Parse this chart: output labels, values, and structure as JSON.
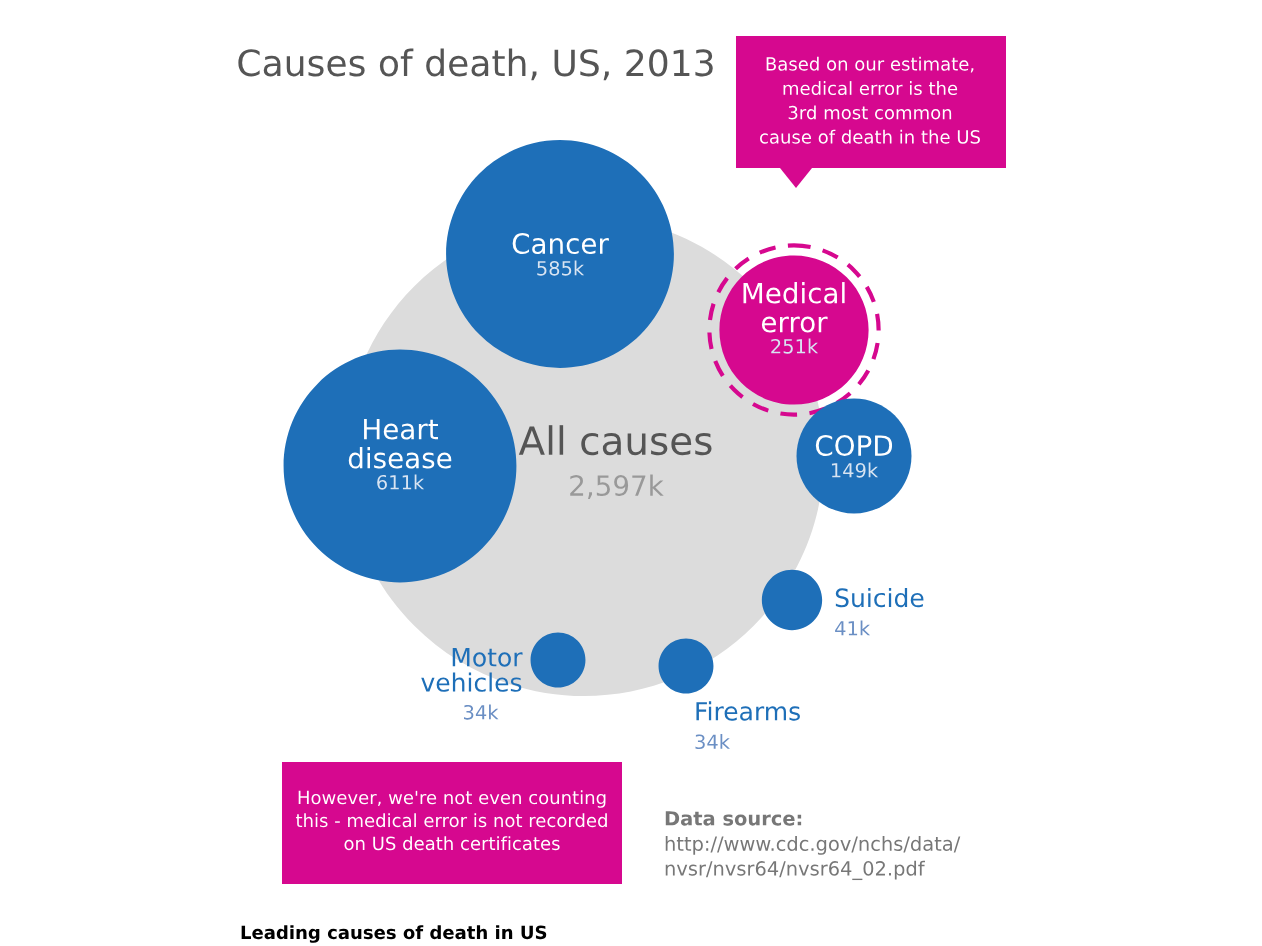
{
  "chart_data": {
    "type": "other",
    "title": "Causes of death, US, 2013",
    "categories": [
      "All causes",
      "Cancer",
      "Medical\nerror",
      "Heart\ndisease",
      "COPD",
      "Suicide",
      "Firearms",
      "Motor\nvehicles"
    ],
    "values": [
      2597,
      585,
      251,
      611,
      149,
      41,
      34,
      34
    ],
    "value_labels": [
      "2,597k",
      "585k",
      "251k",
      "611k",
      "149k",
      "41k",
      "34k",
      "34k"
    ],
    "colors": [
      "#dcdcdc",
      "#1e6fb8",
      "#d6088f",
      "#1e6fb8",
      "#1e6fb8",
      "#1e6fb8",
      "#1e6fb8",
      "#1e6fb8"
    ],
    "annotations": [
      "Based on our estimate,\nmedical error is the\n3rd most common\ncause of death in the US",
      "However, we're not even counting\nthis - medical error is not recorded\non US death certificates",
      "Data source:",
      "http://www.cdc.gov/nchs/data/\nnvsr/nvsr64/nvsr64_02.pdf",
      "Leading causes of death in US"
    ]
  }
}
